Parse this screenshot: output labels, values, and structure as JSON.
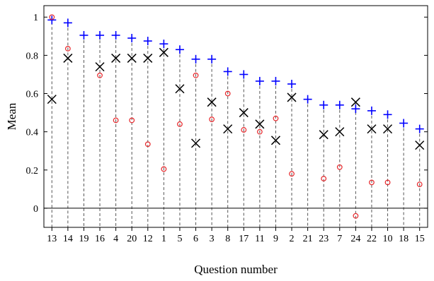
{
  "chart_data": {
    "type": "scatter",
    "xlabel": "Question number",
    "ylabel": "Mean",
    "categories": [
      "13",
      "14",
      "19",
      "16",
      "4",
      "20",
      "12",
      "1",
      "5",
      "6",
      "3",
      "8",
      "17",
      "11",
      "9",
      "2",
      "21",
      "23",
      "7",
      "24",
      "22",
      "10",
      "18",
      "15"
    ],
    "ylim": [
      -0.1,
      1.06
    ],
    "yticks": [
      0,
      0.2,
      0.4,
      0.6,
      0.8,
      1
    ],
    "ytick_labels": [
      "0",
      "0.2",
      "0.4",
      "0.6",
      "0.8",
      "1"
    ],
    "grid": false,
    "zero_line": true,
    "legend": "none",
    "series": [
      {
        "marker": "plus",
        "color": "#0000ff",
        "values": [
          0.985,
          0.97,
          0.905,
          0.905,
          0.905,
          0.89,
          0.875,
          0.86,
          0.83,
          0.78,
          0.78,
          0.715,
          0.7,
          0.665,
          0.665,
          0.65,
          0.57,
          0.54,
          0.54,
          0.52,
          0.51,
          0.49,
          0.445,
          0.415
        ]
      },
      {
        "marker": "x",
        "color": "#000000",
        "values": [
          0.57,
          0.785,
          null,
          0.74,
          0.785,
          0.785,
          0.785,
          0.815,
          0.625,
          0.34,
          0.555,
          0.415,
          0.5,
          0.44,
          0.355,
          0.58,
          null,
          0.385,
          0.4,
          0.555,
          0.415,
          0.415,
          null,
          0.33
        ]
      },
      {
        "marker": "circle",
        "color": "#e8272b",
        "values": [
          1.0,
          0.835,
          null,
          0.695,
          0.46,
          0.46,
          0.335,
          0.205,
          0.44,
          0.695,
          0.465,
          0.6,
          0.41,
          0.4,
          0.47,
          0.18,
          null,
          0.155,
          0.215,
          -0.04,
          0.135,
          0.135,
          null,
          0.125
        ]
      }
    ]
  }
}
